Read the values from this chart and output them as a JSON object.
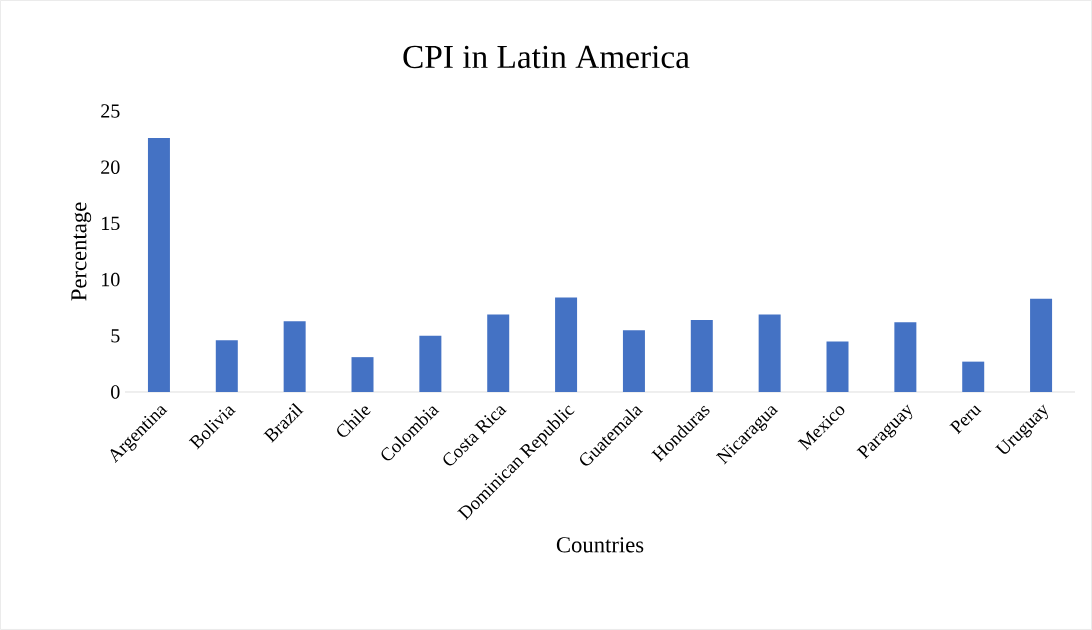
{
  "chart_data": {
    "type": "bar",
    "title": "CPI in Latin America",
    "xlabel": "Countries",
    "ylabel": "Percentage",
    "categories": [
      "Argentina",
      "Bolivia",
      "Brazil",
      "Chile",
      "Colombia",
      "Costa Rica",
      "Dominican Republic",
      "Guatemala",
      "Honduras",
      "Nicaragua",
      "Mexico",
      "Paraguay",
      "Peru",
      "Uruguay"
    ],
    "values": [
      22.6,
      4.6,
      6.3,
      3.1,
      5.0,
      6.9,
      8.4,
      5.5,
      6.4,
      6.9,
      4.5,
      6.2,
      2.7,
      8.3
    ],
    "color": "#4472c4",
    "ylim": [
      0,
      25
    ],
    "yticks": [
      0,
      5,
      10,
      15,
      20,
      25
    ]
  }
}
